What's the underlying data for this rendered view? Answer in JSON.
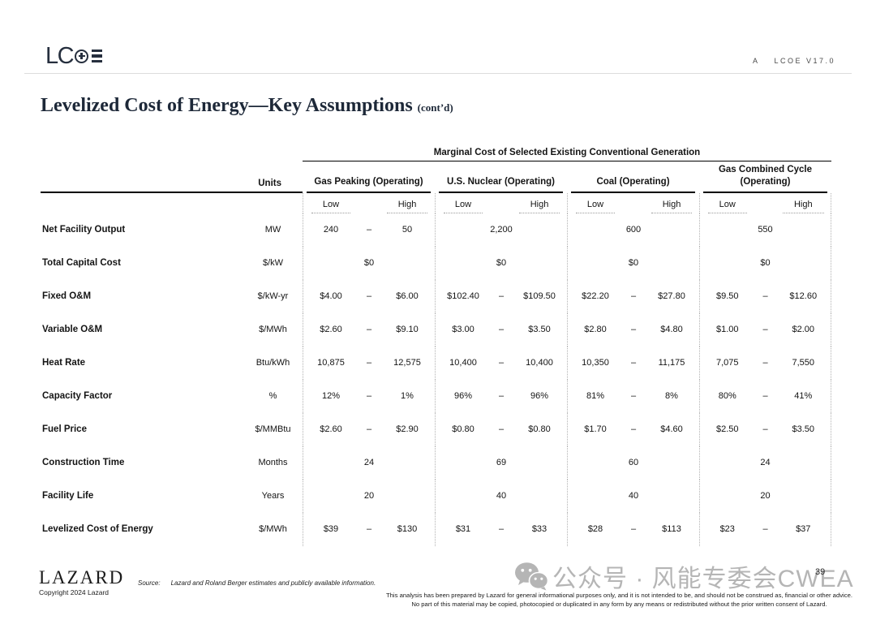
{
  "header": {
    "logo_lc": "LC",
    "version_prefix": "A",
    "version": "LCOE V17.0"
  },
  "title": {
    "main": "Levelized Cost of Energy—Key Assumptions",
    "suffix": "(cont’d)"
  },
  "table": {
    "banner": "Marginal Cost of Selected Existing Conventional Generation",
    "units_header": "Units",
    "low_label": "Low",
    "high_label": "High",
    "range_separator": "–",
    "groups": [
      {
        "label": "Gas Peaking (Operating)"
      },
      {
        "label": "U.S. Nuclear (Operating)"
      },
      {
        "label": "Coal (Operating)"
      },
      {
        "label": "Gas Combined Cycle (Operating)"
      }
    ],
    "rows": [
      {
        "label": "Net Facility Output",
        "units": "MW",
        "cells": [
          {
            "low": "240",
            "high": "50"
          },
          {
            "value": "2,200"
          },
          {
            "value": "600"
          },
          {
            "value": "550"
          }
        ]
      },
      {
        "label": "Total Capital Cost",
        "units": "$/kW",
        "cells": [
          {
            "value": "$0"
          },
          {
            "value": "$0"
          },
          {
            "value": "$0"
          },
          {
            "value": "$0"
          }
        ]
      },
      {
        "label": "Fixed O&M",
        "units": "$/kW-yr",
        "cells": [
          {
            "low": "$4.00",
            "high": "$6.00"
          },
          {
            "low": "$102.40",
            "high": "$109.50"
          },
          {
            "low": "$22.20",
            "high": "$27.80"
          },
          {
            "low": "$9.50",
            "high": "$12.60"
          }
        ]
      },
      {
        "label": "Variable O&M",
        "units": "$/MWh",
        "cells": [
          {
            "low": "$2.60",
            "high": "$9.10"
          },
          {
            "low": "$3.00",
            "high": "$3.50"
          },
          {
            "low": "$2.80",
            "high": "$4.80"
          },
          {
            "low": "$1.00",
            "high": "$2.00"
          }
        ]
      },
      {
        "label": "Heat Rate",
        "units": "Btu/kWh",
        "cells": [
          {
            "low": "10,875",
            "high": "12,575"
          },
          {
            "low": "10,400",
            "high": "10,400"
          },
          {
            "low": "10,350",
            "high": "11,175"
          },
          {
            "low": "7,075",
            "high": "7,550"
          }
        ]
      },
      {
        "label": "Capacity Factor",
        "units": "%",
        "cells": [
          {
            "low": "12%",
            "high": "1%"
          },
          {
            "low": "96%",
            "high": "96%"
          },
          {
            "low": "81%",
            "high": "8%"
          },
          {
            "low": "80%",
            "high": "41%"
          }
        ]
      },
      {
        "label": "Fuel Price",
        "units": "$/MMBtu",
        "cells": [
          {
            "low": "$2.60",
            "high": "$2.90"
          },
          {
            "low": "$0.80",
            "high": "$0.80"
          },
          {
            "low": "$1.70",
            "high": "$4.60"
          },
          {
            "low": "$2.50",
            "high": "$3.50"
          }
        ]
      },
      {
        "label": "Construction Time",
        "units": "Months",
        "cells": [
          {
            "value": "24"
          },
          {
            "value": "69"
          },
          {
            "value": "60"
          },
          {
            "value": "24"
          }
        ]
      },
      {
        "label": "Facility Life",
        "units": "Years",
        "cells": [
          {
            "value": "20"
          },
          {
            "value": "40"
          },
          {
            "value": "40"
          },
          {
            "value": "20"
          }
        ]
      },
      {
        "label": "Levelized Cost of Energy",
        "units": "$/MWh",
        "cells": [
          {
            "low": "$39",
            "high": "$130"
          },
          {
            "low": "$31",
            "high": "$33"
          },
          {
            "low": "$28",
            "high": "$113"
          },
          {
            "low": "$23",
            "high": "$37"
          }
        ]
      }
    ]
  },
  "footer": {
    "brand": "LAZARD",
    "copyright": "Copyright 2024 Lazard",
    "source_label": "Source:",
    "source_text": "Lazard and Roland Berger estimates and publicly available information.",
    "disclaimer": "This analysis has been prepared by Lazard for general informational purposes only, and it is not intended to be, and should not be construed as, financial or other advice. No part of this material may be copied, photocopied or duplicated in any form by any means or redistributed without the prior written consent of Lazard.",
    "page_number": "39"
  },
  "watermark": {
    "icon": "wechat-icon",
    "text": "公众号 · 风能专委会CWEA"
  },
  "colors": {
    "brand_navy": "#262f3e",
    "line_black": "#000000",
    "rule_gray": "#dcdcdc",
    "watermark_gray": "#b5b5b5"
  }
}
